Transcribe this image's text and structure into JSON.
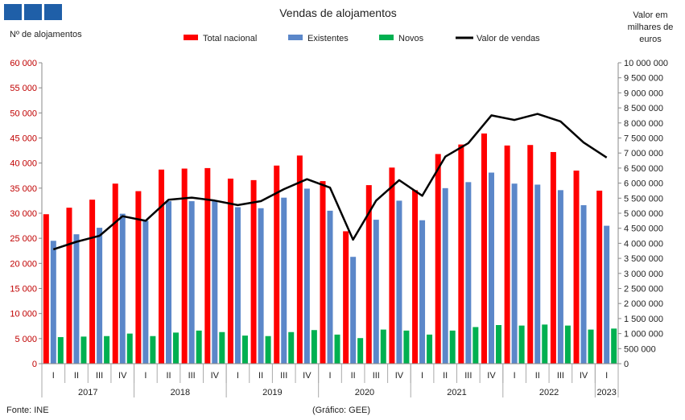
{
  "header_squares": [
    "#1f5fa8",
    "#1f5fa8",
    "#1f5fa8"
  ],
  "footer": {
    "source": "Fonte: INE",
    "credit": "(Gráfico: GEE)"
  },
  "chart_data": {
    "type": "bar",
    "title": "Vendas de alojamentos",
    "ylabel_left": "Nº de alojamentos",
    "ylabel_right": [
      "Valor em",
      "milhares de",
      "euros"
    ],
    "ylim_left": [
      0,
      60000
    ],
    "ylim_right": [
      0,
      10000000
    ],
    "yticks_left": [
      "0",
      "5 000",
      "10 000",
      "15 000",
      "20 000",
      "25 000",
      "30 000",
      "35 000",
      "40 000",
      "45 000",
      "50 000",
      "55 000",
      "60 000"
    ],
    "yticks_right": [
      "0",
      "500 000",
      "1 000 000",
      "1 500 000",
      "2 000 000",
      "2 500 000",
      "3 000 000",
      "3 500 000",
      "4 000 000",
      "4 500 000",
      "5 000 000",
      "5 500 000",
      "6 000 000",
      "6 500 000",
      "7 000 000",
      "7 500 000",
      "8 000 000",
      "8 500 000",
      "9 000 000",
      "9 500 000",
      "10 000 000"
    ],
    "left_axis_color": "#c00000",
    "grid": false,
    "legend_position": "top",
    "categories": [
      "I",
      "II",
      "III",
      "IV",
      "I",
      "II",
      "III",
      "IV",
      "I",
      "II",
      "III",
      "IV",
      "I",
      "II",
      "III",
      "IV",
      "I",
      "II",
      "III",
      "IV",
      "I",
      "II",
      "III",
      "IV",
      "I"
    ],
    "year_groups": [
      {
        "label": "2017",
        "count": 4
      },
      {
        "label": "2018",
        "count": 4
      },
      {
        "label": "2019",
        "count": 4
      },
      {
        "label": "2020",
        "count": 4
      },
      {
        "label": "2021",
        "count": 4
      },
      {
        "label": "2022",
        "count": 4
      },
      {
        "label": "2023",
        "count": 1
      }
    ],
    "series": [
      {
        "name": "Total nacional",
        "kind": "bar",
        "axis": "left",
        "color": "#ff0000",
        "values": [
          29800,
          31100,
          32700,
          35900,
          34400,
          38700,
          38900,
          39000,
          36900,
          36600,
          39500,
          41500,
          36400,
          26400,
          35600,
          39100,
          34600,
          41800,
          43700,
          45900,
          43500,
          43600,
          42200,
          38500,
          34500
        ]
      },
      {
        "name": "Existentes",
        "kind": "bar",
        "axis": "left",
        "color": "#5b87c9",
        "values": [
          24500,
          25800,
          27100,
          29900,
          28500,
          32400,
          32400,
          32400,
          31200,
          31000,
          33100,
          34900,
          30500,
          21300,
          28700,
          32500,
          28600,
          35000,
          36200,
          38100,
          35900,
          35700,
          34600,
          31600,
          27500
        ]
      },
      {
        "name": "Novos",
        "kind": "bar",
        "axis": "left",
        "color": "#00b050",
        "values": [
          5300,
          5400,
          5500,
          6000,
          5500,
          6200,
          6600,
          6300,
          5600,
          5500,
          6300,
          6700,
          5800,
          5100,
          6800,
          6600,
          5800,
          6600,
          7300,
          7700,
          7600,
          7800,
          7600,
          6800,
          7000
        ]
      },
      {
        "name": "Valor de vendas",
        "kind": "line",
        "axis": "right",
        "color": "#000000",
        "values": [
          3800000,
          4050000,
          4250000,
          4900000,
          4750000,
          5450000,
          5520000,
          5420000,
          5270000,
          5400000,
          5800000,
          6130000,
          5850000,
          4120000,
          5420000,
          6100000,
          5580000,
          6880000,
          7330000,
          8250000,
          8100000,
          8300000,
          8050000,
          7350000,
          6850000
        ]
      }
    ]
  }
}
